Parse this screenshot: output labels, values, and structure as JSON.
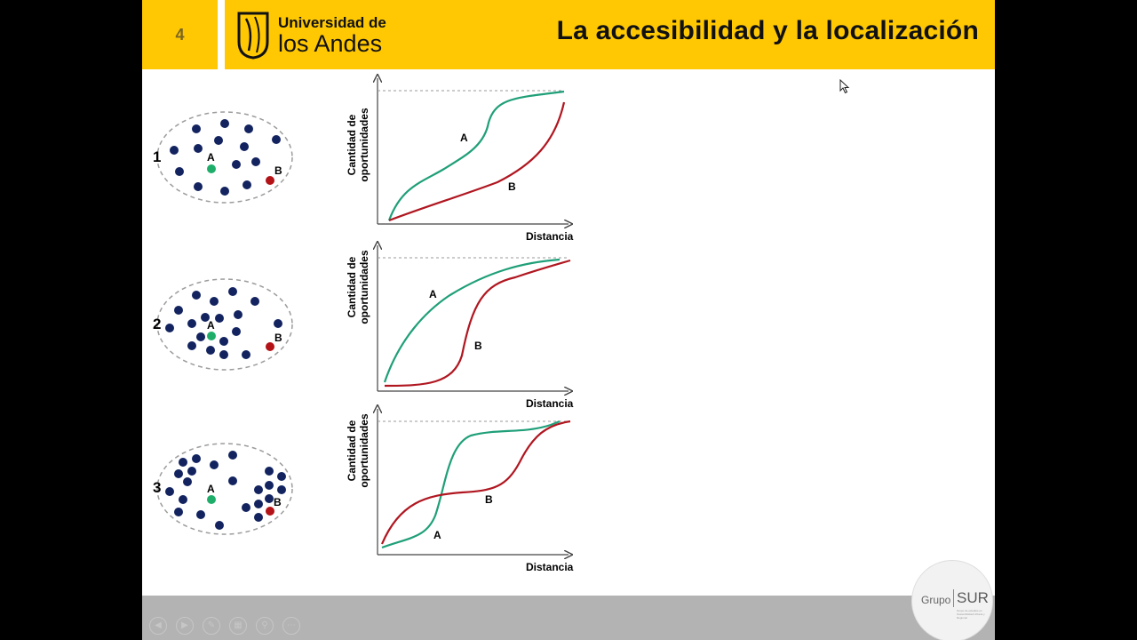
{
  "slide": {
    "number": "4",
    "title": "La accesibilidad y la localización",
    "logo": {
      "line1": "Universidad de",
      "line2": "los Andes"
    },
    "watermark": {
      "brand_left": "Grupo",
      "brand_right": "SUR",
      "tagline": "Grupo de estudios en Sostenibilidad Urbana y Regional"
    }
  },
  "colors": {
    "header": "#ffc803",
    "dot": "#12235f",
    "point_a": "#1fae6a",
    "point_b": "#b31217",
    "curve_a": "#1f9f78",
    "curve_b": "#b01620"
  },
  "axes": {
    "ylabel_line1": "Cantidad de",
    "ylabel_line2": "oportunidades",
    "xlabel": "Distancia"
  },
  "scenarios": [
    {
      "number": "1",
      "label_a": "A",
      "label_b": "B",
      "curve_label_a": "A",
      "curve_label_b": "B"
    },
    {
      "number": "2",
      "label_a": "A",
      "label_b": "B",
      "curve_label_a": "A",
      "curve_label_b": "B"
    },
    {
      "number": "3",
      "label_a": "A",
      "label_b": "B",
      "curve_label_a": "A",
      "curve_label_b": "B"
    }
  ],
  "controls": [
    "previous-icon",
    "next-icon",
    "pen-icon",
    "slides-icon",
    "zoom-icon",
    "more-icon"
  ]
}
